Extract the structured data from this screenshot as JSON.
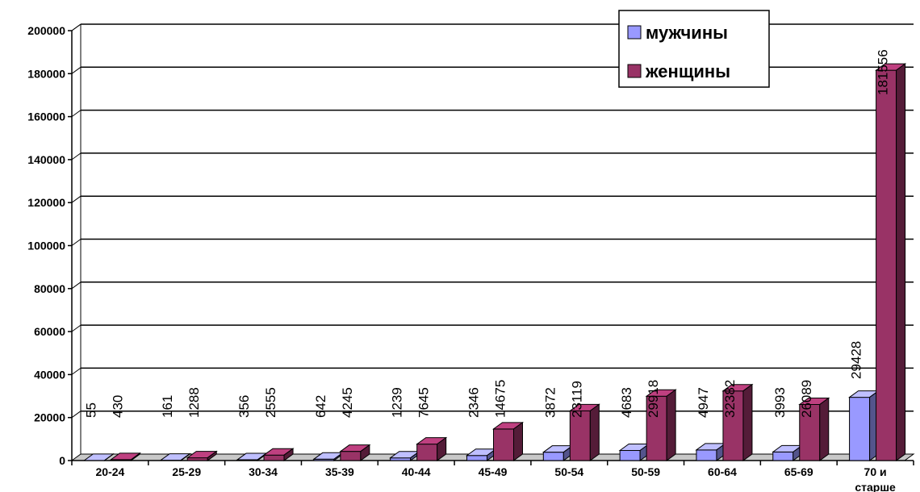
{
  "chart_data": {
    "type": "bar",
    "title": "",
    "xlabel": "",
    "ylabel": "",
    "ylim": [
      0,
      200000
    ],
    "yticks": [
      0,
      20000,
      40000,
      60000,
      80000,
      100000,
      120000,
      140000,
      160000,
      180000,
      200000
    ],
    "grid": true,
    "legend_position": "top-right",
    "categories": [
      "20-24",
      "25-29",
      "30-34",
      "35-39",
      "40-44",
      "45-49",
      "50-54",
      "50-59",
      "60-64",
      "65-69",
      "70 и старше"
    ],
    "series": [
      {
        "name": "мужчины",
        "color": "#9999FF",
        "values": [
          55,
          161,
          356,
          642,
          1239,
          2346,
          3872,
          4683,
          4947,
          3993,
          29428
        ]
      },
      {
        "name": "женщины",
        "color": "#993366",
        "values": [
          430,
          1288,
          2555,
          4245,
          7645,
          14675,
          23119,
          29918,
          32382,
          26089,
          181556
        ]
      }
    ]
  }
}
